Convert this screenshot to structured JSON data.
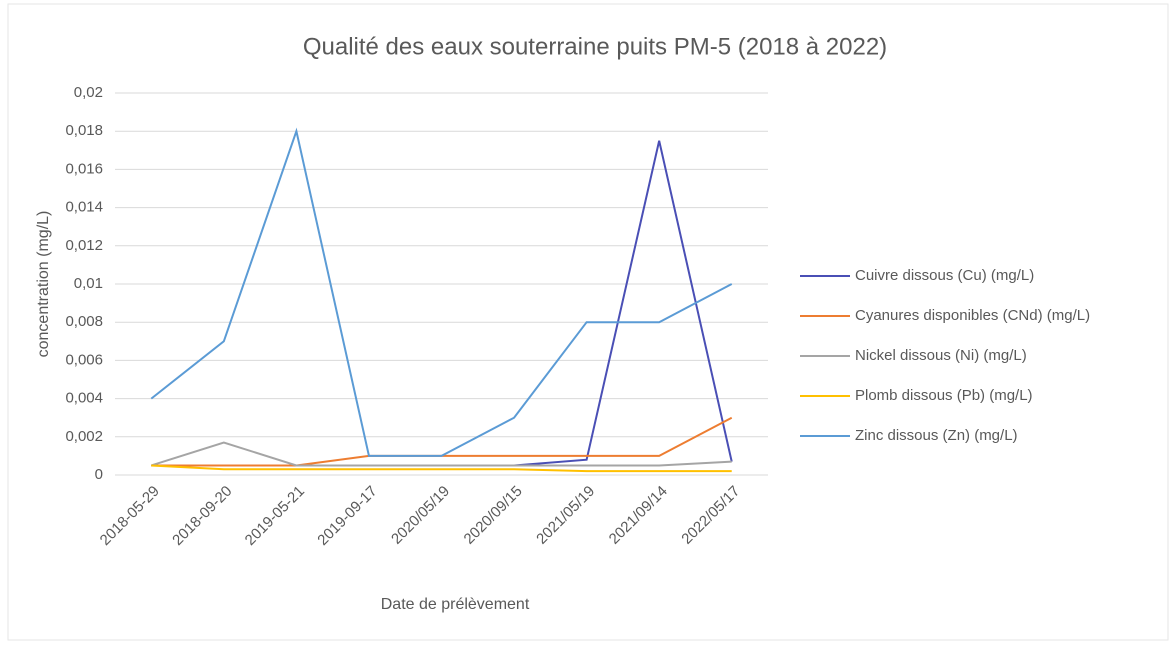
{
  "chart_data": {
    "type": "line",
    "title": "Qualité des eaux souterraine puits PM-5 (2018 à 2022)",
    "x_label": "Date de prélèvement",
    "y_label": "concentration (mg/L)",
    "categories": [
      "2018-05-29",
      "2018-09-20",
      "2019-05-21",
      "2019-09-17",
      "2020/05/19",
      "2020/09/15",
      "2021/05/19",
      "2021/09/14",
      "2022/05/17"
    ],
    "series": [
      {
        "name": "Cuivre dissous (Cu) (mg/L)",
        "color": "#4a4fb5",
        "values": [
          0.0005,
          0.0005,
          0.0005,
          0.0005,
          0.0005,
          0.0005,
          0.0008,
          0.0175,
          0.0007
        ]
      },
      {
        "name": "Cyanures disponibles (CNd) (mg/L)",
        "color": "#ed7d31",
        "values": [
          0.0005,
          0.0005,
          0.0005,
          0.001,
          0.001,
          0.001,
          0.001,
          0.001,
          0.003
        ]
      },
      {
        "name": "Nickel dissous (Ni) (mg/L)",
        "color": "#a5a5a5",
        "values": [
          0.0005,
          0.0017,
          0.0005,
          0.0005,
          0.0005,
          0.0005,
          0.0005,
          0.0005,
          0.0007
        ]
      },
      {
        "name": "Plomb dissous (Pb) (mg/L)",
        "color": "#ffc000",
        "values": [
          0.0005,
          0.0003,
          0.0003,
          0.0003,
          0.0003,
          0.0003,
          0.0002,
          0.0002,
          0.0002
        ]
      },
      {
        "name": "Zinc dissous (Zn) (mg/L)",
        "color": "#5b9bd5",
        "values": [
          0.004,
          0.007,
          0.018,
          0.001,
          0.001,
          0.003,
          0.008,
          0.008,
          0.01
        ]
      }
    ],
    "ylim": [
      0,
      0.02
    ],
    "yticks": [
      0,
      {
        "value": 0.002,
        "label": "0,002"
      },
      {
        "value": 0.004,
        "label": "0,004"
      },
      {
        "value": 0.006,
        "label": "0,006"
      },
      {
        "value": 0.008,
        "label": "0,008"
      },
      {
        "value": 0.01,
        "label": "0,01"
      },
      {
        "value": 0.012,
        "label": "0,012"
      },
      {
        "value": 0.014,
        "label": "0,014"
      },
      {
        "value": 0.016,
        "label": "0,016"
      },
      {
        "value": 0.018,
        "label": "0,018"
      },
      {
        "value": 0.02,
        "label": "0,02"
      }
    ],
    "grid": true,
    "legend": "right"
  }
}
